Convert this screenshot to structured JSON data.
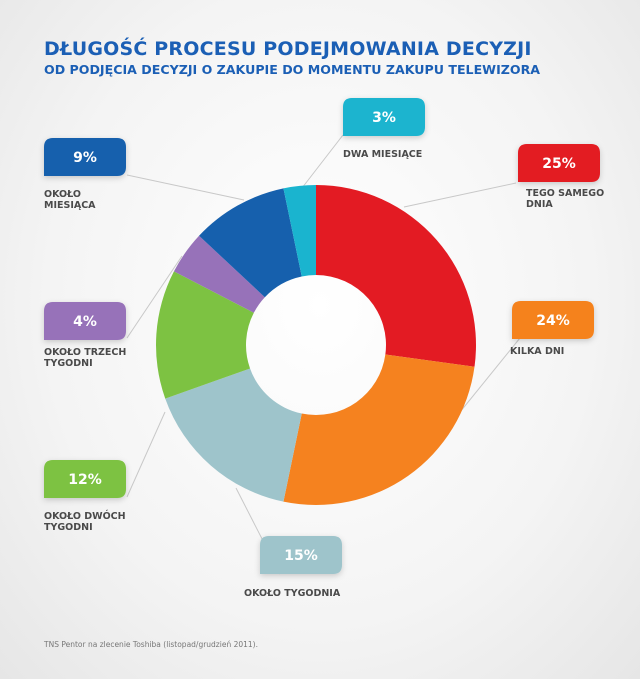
{
  "header": {
    "title": "DŁUGOŚĆ PROCESU PODEJMOWANIA DECYZJI",
    "subtitle": "OD PODJĘCIA DECYZJI O ZAKUPIE DO MOMENTU ZAKUPU TELEWIZORA"
  },
  "chart_data": {
    "type": "pie",
    "donut": true,
    "title": "DŁUGOŚĆ PROCESU PODEJMOWANIA DECYZJI",
    "subtitle": "OD PODJĘCIA DECYZJI O ZAKUPIE DO MOMENTU ZAKUPU TELEWIZORA",
    "slices": [
      {
        "key": "same-day",
        "value_label": "25%",
        "label_lines": [
          "TEGO SAMEGO",
          "DNIA"
        ],
        "color": "#e31b23",
        "value": 25
      },
      {
        "key": "few-days",
        "value_label": "24%",
        "label_lines": [
          "KILKA DNI"
        ],
        "color": "#f5821f",
        "value": 24
      },
      {
        "key": "week",
        "value_label": "15%",
        "label_lines": [
          "OKOŁO TYGODNIA"
        ],
        "color": "#9ec4cb",
        "value": 15
      },
      {
        "key": "two-weeks",
        "value_label": "12%",
        "label_lines": [
          "OKOŁO DWÓCH",
          "TYGODNI"
        ],
        "color": "#7dc242",
        "value": 12
      },
      {
        "key": "three-weeks",
        "value_label": "4%",
        "label_lines": [
          "OKOŁO TRZECH",
          "TYGODNI"
        ],
        "color": "#9772b9",
        "value": 4
      },
      {
        "key": "month",
        "value_label": "9%",
        "label_lines": [
          "OKOŁO",
          "MIESIĄCA"
        ],
        "color": "#1660ad",
        "value": 9
      },
      {
        "key": "two-months",
        "value_label": "3%",
        "label_lines": [
          "DWA MIESIĄCE"
        ],
        "color": "#1ab4cf",
        "value": 3
      }
    ],
    "legend": "callouts around chart"
  },
  "footer": {
    "source": "TNS Pentor na zlecenie Toshiba (listopad/grudzień 2011)."
  }
}
